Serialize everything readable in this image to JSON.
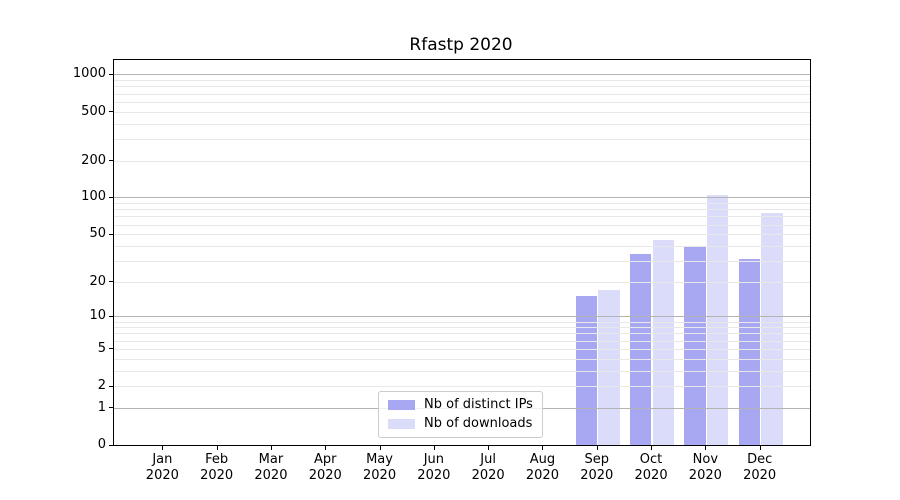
{
  "chart_data": {
    "type": "bar",
    "title": "Rfastp 2020",
    "months": [
      "Jan",
      "Feb",
      "Mar",
      "Apr",
      "May",
      "Jun",
      "Jul",
      "Aug",
      "Sep",
      "Oct",
      "Nov",
      "Dec"
    ],
    "year": "2020",
    "series": [
      {
        "name": "Nb of distinct IPs",
        "key": "distinct-ips",
        "color": "#a7a7f2",
        "values": [
          0,
          0,
          0,
          0,
          0,
          0,
          0,
          0,
          15,
          34,
          39,
          31
        ]
      },
      {
        "name": "Nb of downloads",
        "key": "downloads",
        "color": "#dbdbfa",
        "values": [
          0,
          0,
          0,
          0,
          0,
          0,
          0,
          0,
          17,
          45,
          105,
          75
        ]
      }
    ],
    "y_axis": {
      "scale": "log10(value+1)",
      "tick_values": [
        0,
        1,
        2,
        5,
        10,
        20,
        50,
        100,
        200,
        500,
        1000
      ],
      "top_value": 1310,
      "major_grid_values": [
        1,
        10,
        100,
        1000
      ],
      "minor_grid_values": [
        2,
        3,
        4,
        5,
        6,
        7,
        8,
        9,
        20,
        30,
        40,
        50,
        60,
        70,
        80,
        90,
        200,
        300,
        400,
        500,
        600,
        700,
        800,
        900
      ]
    },
    "x_axis": {
      "tick_label_format": "Month over Year"
    },
    "grid": {
      "orientation": "horizontal",
      "major_color": "#b3b3b3",
      "minor_color": "#e8e8e8",
      "grid_above_bars": true
    },
    "legend": {
      "position": "inside-bottom-center-left"
    },
    "ylim_bottom": 0
  },
  "colors": {
    "background": "#ffffff",
    "axis_line": "#000000",
    "text": "#000000",
    "legend_border": "#cccccc",
    "legend_background": "rgba(255,255,255,0.8)"
  }
}
